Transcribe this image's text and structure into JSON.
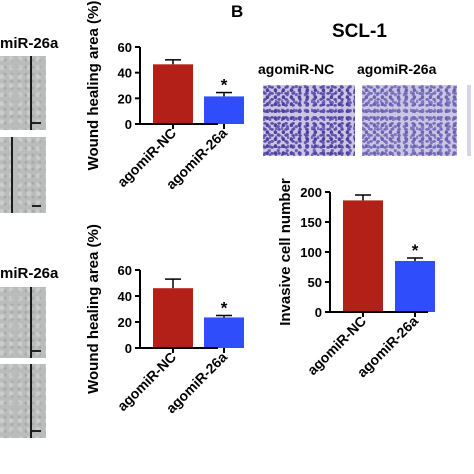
{
  "panel_a": {
    "row1_label": "miR-26a",
    "row2_label": "miR-26a"
  },
  "panel_b": {
    "letter": "B",
    "title": "SCL-1",
    "image_label_nc": "agomiR-NC",
    "image_label_26a": "agomiR-26a"
  },
  "colors": {
    "nc_bar": "#b22017",
    "mir_bar": "#2f4dfa",
    "axis": "#000000"
  },
  "chart_data": [
    {
      "type": "bar",
      "categories": [
        "agomiR-NC",
        "agomiR-26a"
      ],
      "values": [
        46.5,
        21.5
      ],
      "errors": [
        3.5,
        3
      ],
      "significance": [
        "",
        "*"
      ],
      "xlabel": "",
      "ylabel": "Wound healing area (%)",
      "ylim": [
        0,
        60
      ],
      "yticks": [
        0,
        20,
        40,
        60
      ]
    },
    {
      "type": "bar",
      "categories": [
        "agomiR-NC",
        "agomiR-26a"
      ],
      "values": [
        46,
        23.5
      ],
      "errors": [
        7,
        1.5
      ],
      "significance": [
        "",
        "*"
      ],
      "xlabel": "",
      "ylabel": "Wound healing area (%)",
      "ylim": [
        0,
        60
      ],
      "yticks": [
        0,
        20,
        40,
        60
      ]
    },
    {
      "type": "bar",
      "categories": [
        "agomiR-NC",
        "agomiR-26a"
      ],
      "values": [
        186,
        85
      ],
      "errors": [
        9,
        5
      ],
      "significance": [
        "",
        "*"
      ],
      "xlabel": "",
      "ylabel": "Invasive cell number",
      "ylim": [
        0,
        200
      ],
      "yticks": [
        0,
        50,
        100,
        150,
        200
      ]
    }
  ]
}
